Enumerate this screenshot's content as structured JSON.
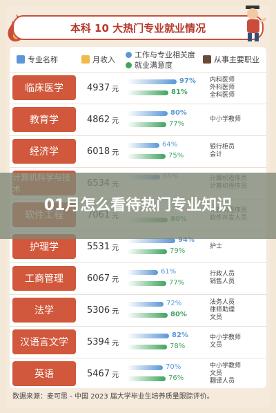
{
  "title": "本科 10 大热门专业就业情况",
  "header": {
    "major_label": "专业名称",
    "income_label": "月收入",
    "legend_related": "工作与专业相关度",
    "legend_satisfaction": "就业满意度",
    "jobs_label": "从事主要职业"
  },
  "colors": {
    "related": "#5b97d6",
    "satisfaction": "#3fa45f",
    "major_bg": "#d1583c",
    "accent": "#c94d3a"
  },
  "rows": [
    {
      "major": "临床医学",
      "income": "4937",
      "unit": "元",
      "related": "97%",
      "related_v": 97,
      "satisfaction": "81%",
      "satisfaction_v": 81,
      "jobs": [
        "内科医师",
        "外科医师",
        "全科医师"
      ]
    },
    {
      "major": "教育学",
      "income": "4862",
      "unit": "元",
      "related": "80%",
      "related_v": 80,
      "satisfaction": "77%",
      "satisfaction_v": 77,
      "jobs": [
        "中小学教师"
      ]
    },
    {
      "major": "经济学",
      "income": "6018",
      "unit": "元",
      "related": "64%",
      "related_v": 64,
      "satisfaction": "75%",
      "satisfaction_v": 75,
      "jobs": [
        "银行柜员",
        "会计"
      ]
    },
    {
      "major": "计算机科学与技术",
      "income": "6534",
      "unit": "元",
      "related": "65%",
      "related_v": 65,
      "satisfaction": "",
      "satisfaction_v": 0,
      "jobs": [
        "计算机程序员",
        "计算机程序员"
      ]
    },
    {
      "major": "软件工程",
      "income": "7061",
      "unit": "元",
      "related": "",
      "related_v": 0,
      "satisfaction": "80%",
      "satisfaction_v": 80,
      "jobs": [
        "计算机程序员",
        "软件开发人员"
      ]
    },
    {
      "major": "护理学",
      "income": "5531",
      "unit": "元",
      "related": "94%",
      "related_v": 94,
      "satisfaction": "79%",
      "satisfaction_v": 79,
      "jobs": [
        "护士"
      ]
    },
    {
      "major": "工商管理",
      "income": "6067",
      "unit": "元",
      "related": "61%",
      "related_v": 61,
      "satisfaction": "77%",
      "satisfaction_v": 77,
      "jobs": [
        "行政人员",
        "销售人员"
      ]
    },
    {
      "major": "法学",
      "income": "5306",
      "unit": "元",
      "related": "72%",
      "related_v": 72,
      "satisfaction": "80%",
      "satisfaction_v": 80,
      "jobs": [
        "法务人员",
        "律师助理",
        "文员"
      ]
    },
    {
      "major": "汉语言文学",
      "income": "5394",
      "unit": "元",
      "related": "82%",
      "related_v": 82,
      "satisfaction": "78%",
      "satisfaction_v": 78,
      "jobs": [
        "中小学教师",
        "文员"
      ]
    },
    {
      "major": "英语",
      "income": "5467",
      "unit": "元",
      "related": "70%",
      "related_v": 70,
      "satisfaction": "76%",
      "satisfaction_v": 76,
      "jobs": [
        "中小学教师",
        "文员",
        "翻译人员"
      ]
    }
  ],
  "footer": "数据来源：麦可思 - 中国 2023 届大学毕业生培养质量跟踪评价。",
  "overlay_title": "01月怎么看待热门专业知识"
}
